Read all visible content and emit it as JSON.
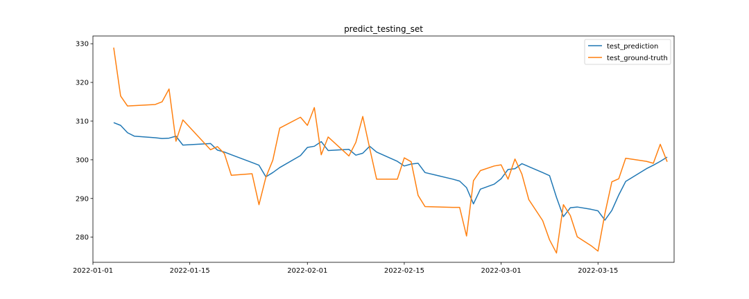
{
  "chart_data": {
    "type": "line",
    "title": "predict_testing_set",
    "xlabel": "",
    "ylabel": "",
    "x_type": "date",
    "xlim": [
      "2022-01-01",
      "2022-03-26"
    ],
    "ylim": [
      273.5,
      332
    ],
    "x_ticks": [
      "2022-01-01",
      "2022-01-15",
      "2022-02-01",
      "2022-02-15",
      "2022-03-01",
      "2022-03-15"
    ],
    "y_ticks": [
      280,
      290,
      300,
      310,
      320,
      330
    ],
    "grid": false,
    "legend_position": "top-right",
    "series": [
      {
        "name": "test_prediction",
        "color": "#1f77b4",
        "points": [
          [
            "2022-01-04",
            309.6
          ],
          [
            "2022-01-05",
            308.9
          ],
          [
            "2022-01-06",
            307.0
          ],
          [
            "2022-01-07",
            306.1
          ],
          [
            "2022-01-10",
            305.7
          ],
          [
            "2022-01-11",
            305.5
          ],
          [
            "2022-01-12",
            305.6
          ],
          [
            "2022-01-13",
            306.1
          ],
          [
            "2022-01-14",
            303.8
          ],
          [
            "2022-01-18",
            304.2
          ],
          [
            "2022-01-19",
            302.5
          ],
          [
            "2022-01-20",
            302.0
          ],
          [
            "2022-01-21",
            301.3
          ],
          [
            "2022-01-24",
            299.3
          ],
          [
            "2022-01-25",
            298.6
          ],
          [
            "2022-01-26",
            295.6
          ],
          [
            "2022-01-27",
            296.7
          ],
          [
            "2022-01-28",
            298.0
          ],
          [
            "2022-01-31",
            301.1
          ],
          [
            "2022-02-01",
            303.2
          ],
          [
            "2022-02-02",
            303.5
          ],
          [
            "2022-02-03",
            304.7
          ],
          [
            "2022-02-04",
            302.4
          ],
          [
            "2022-02-07",
            302.7
          ],
          [
            "2022-02-08",
            301.2
          ],
          [
            "2022-02-09",
            301.7
          ],
          [
            "2022-02-10",
            303.5
          ],
          [
            "2022-02-11",
            302.0
          ],
          [
            "2022-02-14",
            299.6
          ],
          [
            "2022-02-15",
            298.4
          ],
          [
            "2022-02-16",
            298.9
          ],
          [
            "2022-02-17",
            299.1
          ],
          [
            "2022-02-18",
            296.7
          ],
          [
            "2022-02-22",
            295.0
          ],
          [
            "2022-02-23",
            294.5
          ],
          [
            "2022-02-24",
            292.8
          ],
          [
            "2022-02-25",
            288.6
          ],
          [
            "2022-02-26",
            292.4
          ],
          [
            "2022-02-28",
            293.7
          ],
          [
            "2022-03-01",
            295.1
          ],
          [
            "2022-03-02",
            297.5
          ],
          [
            "2022-03-03",
            297.7
          ],
          [
            "2022-03-04",
            299.0
          ],
          [
            "2022-03-07",
            296.7
          ],
          [
            "2022-03-08",
            295.9
          ],
          [
            "2022-03-09",
            290.3
          ],
          [
            "2022-03-10",
            285.3
          ],
          [
            "2022-03-11",
            287.6
          ],
          [
            "2022-03-12",
            287.8
          ],
          [
            "2022-03-14",
            287.2
          ],
          [
            "2022-03-15",
            286.8
          ],
          [
            "2022-03-16",
            284.4
          ],
          [
            "2022-03-17",
            286.9
          ],
          [
            "2022-03-18",
            290.9
          ],
          [
            "2022-03-19",
            294.4
          ],
          [
            "2022-03-22",
            297.7
          ],
          [
            "2022-03-23",
            298.6
          ],
          [
            "2022-03-24",
            299.6
          ],
          [
            "2022-03-25",
            300.7
          ]
        ]
      },
      {
        "name": "test_ground-truth",
        "color": "#ff7f0e",
        "points": [
          [
            "2022-01-04",
            329.0
          ],
          [
            "2022-01-05",
            316.5
          ],
          [
            "2022-01-06",
            313.9
          ],
          [
            "2022-01-10",
            314.3
          ],
          [
            "2022-01-11",
            315.0
          ],
          [
            "2022-01-12",
            318.3
          ],
          [
            "2022-01-13",
            304.8
          ],
          [
            "2022-01-14",
            310.3
          ],
          [
            "2022-01-18",
            302.6
          ],
          [
            "2022-01-19",
            303.4
          ],
          [
            "2022-01-20",
            301.6
          ],
          [
            "2022-01-21",
            296.0
          ],
          [
            "2022-01-24",
            296.4
          ],
          [
            "2022-01-25",
            288.4
          ],
          [
            "2022-01-26",
            295.5
          ],
          [
            "2022-01-27",
            299.9
          ],
          [
            "2022-01-28",
            308.2
          ],
          [
            "2022-01-31",
            311.0
          ],
          [
            "2022-02-01",
            308.9
          ],
          [
            "2022-02-02",
            313.5
          ],
          [
            "2022-02-03",
            301.3
          ],
          [
            "2022-02-04",
            305.9
          ],
          [
            "2022-02-07",
            301.0
          ],
          [
            "2022-02-08",
            304.5
          ],
          [
            "2022-02-09",
            311.2
          ],
          [
            "2022-02-10",
            303.0
          ],
          [
            "2022-02-11",
            295.0
          ],
          [
            "2022-02-14",
            295.0
          ],
          [
            "2022-02-15",
            300.5
          ],
          [
            "2022-02-16",
            299.5
          ],
          [
            "2022-02-17",
            290.8
          ],
          [
            "2022-02-18",
            287.9
          ],
          [
            "2022-02-22",
            287.7
          ],
          [
            "2022-02-23",
            287.7
          ],
          [
            "2022-02-24",
            280.3
          ],
          [
            "2022-02-25",
            294.6
          ],
          [
            "2022-02-26",
            297.2
          ],
          [
            "2022-02-28",
            298.4
          ],
          [
            "2022-03-01",
            298.7
          ],
          [
            "2022-03-02",
            295.0
          ],
          [
            "2022-03-03",
            300.2
          ],
          [
            "2022-03-04",
            296.3
          ],
          [
            "2022-03-05",
            289.7
          ],
          [
            "2022-03-07",
            284.3
          ],
          [
            "2022-03-08",
            279.3
          ],
          [
            "2022-03-09",
            275.9
          ],
          [
            "2022-03-10",
            288.4
          ],
          [
            "2022-03-11",
            285.6
          ],
          [
            "2022-03-12",
            280.1
          ],
          [
            "2022-03-14",
            277.8
          ],
          [
            "2022-03-15",
            276.4
          ],
          [
            "2022-03-16",
            286.1
          ],
          [
            "2022-03-17",
            294.3
          ],
          [
            "2022-03-18",
            295.1
          ],
          [
            "2022-03-19",
            300.4
          ],
          [
            "2022-03-22",
            299.6
          ],
          [
            "2022-03-23",
            299.1
          ],
          [
            "2022-03-24",
            304.0
          ],
          [
            "2022-03-25",
            299.5
          ]
        ]
      }
    ]
  }
}
